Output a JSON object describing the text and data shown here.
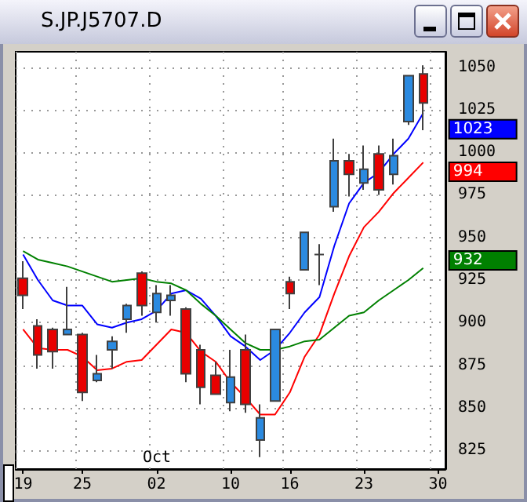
{
  "chart_data": {
    "type": "candlestick",
    "title": "S.JP.J5707.D",
    "categories": [
      "19",
      null,
      null,
      null,
      "25",
      null,
      null,
      null,
      null,
      "02",
      null,
      null,
      null,
      null,
      "10",
      null,
      null,
      null,
      "16",
      null,
      null,
      null,
      null,
      "23",
      null,
      null,
      null,
      null,
      "30"
    ],
    "ohlc": [
      [
        926,
        936,
        908,
        916
      ],
      [
        898,
        902,
        873,
        881
      ],
      [
        896,
        897,
        873,
        883
      ],
      [
        893,
        921,
        893,
        896
      ],
      [
        893,
        894,
        854,
        859
      ],
      [
        866,
        881,
        865,
        870
      ],
      [
        884,
        892,
        873,
        889
      ],
      [
        902,
        911,
        894,
        910
      ],
      [
        929,
        930,
        904,
        910
      ],
      [
        906,
        922,
        900,
        917
      ],
      [
        913,
        922,
        904,
        916
      ],
      [
        908,
        909,
        865,
        870
      ],
      [
        884,
        887,
        852,
        862
      ],
      [
        869,
        877,
        858,
        858
      ],
      [
        853,
        884,
        848,
        868
      ],
      [
        884,
        893,
        847,
        852
      ],
      [
        831,
        852,
        821,
        844
      ],
      [
        854,
        896,
        854,
        896
      ],
      [
        924,
        927,
        908,
        917
      ],
      [
        931,
        953,
        931,
        953
      ],
      [
        940,
        946,
        922,
        940
      ],
      [
        968,
        1008,
        965,
        995
      ],
      [
        995,
        999,
        974,
        987
      ],
      [
        982,
        1004,
        978,
        990
      ],
      [
        999,
        1004,
        975,
        978
      ],
      [
        987,
        1008,
        981,
        998
      ],
      [
        1018,
        1045,
        1016,
        1045
      ],
      [
        1046,
        1051,
        1013,
        1029
      ],
      null
    ],
    "colors": [
      "#e80000",
      "#e80000",
      "#e80000",
      "#2b8ae0",
      "#e80000",
      "#2b8ae0",
      "#2b8ae0",
      "#2b8ae0",
      "#e80000",
      "#2b8ae0",
      "#2b8ae0",
      "#e80000",
      "#e80000",
      "#e80000",
      "#2b8ae0",
      "#e80000",
      "#2b8ae0",
      "#2b8ae0",
      "#e80000",
      "#2b8ae0",
      "#404040",
      "#2b8ae0",
      "#e80000",
      "#2b8ae0",
      "#e80000",
      "#2b8ae0",
      "#2b8ae0",
      "#e80000",
      null
    ],
    "series": [
      {
        "type": "line",
        "color": "#0000ff",
        "values": [
          940,
          925,
          913,
          910,
          910,
          899,
          897,
          900,
          902,
          907,
          917,
          919,
          914,
          904,
          892,
          886,
          878,
          884,
          894,
          906,
          915,
          945,
          970,
          982,
          988,
          999,
          1008,
          1023,
          null
        ],
        "value_labels": [
          null,
          null,
          null,
          null,
          null,
          null,
          null,
          null,
          null,
          null,
          null,
          null,
          null,
          null,
          null,
          null,
          null,
          null,
          null,
          null,
          null,
          null,
          null,
          null,
          null,
          null,
          null,
          "1023",
          null
        ]
      },
      {
        "type": "line",
        "color": "#ff0000",
        "values": [
          896,
          885,
          884,
          884,
          880,
          872,
          873,
          877,
          878,
          887,
          896,
          894,
          883,
          877,
          865,
          856,
          846,
          846,
          859,
          880,
          893,
          917,
          939,
          956,
          965,
          976,
          985,
          994,
          null
        ],
        "value_labels": [
          null,
          null,
          null,
          null,
          null,
          null,
          null,
          null,
          null,
          null,
          null,
          null,
          null,
          null,
          null,
          null,
          null,
          null,
          null,
          null,
          null,
          null,
          null,
          null,
          null,
          null,
          null,
          "994",
          null
        ]
      },
      {
        "type": "line",
        "color": "#008000",
        "values": [
          942,
          937,
          935,
          933,
          930,
          927,
          924,
          925,
          926,
          924,
          923,
          919,
          911,
          904,
          896,
          888,
          884,
          884,
          886,
          889,
          890,
          897,
          904,
          906,
          913,
          919,
          925,
          932,
          null
        ],
        "value_labels": [
          null,
          null,
          null,
          null,
          null,
          null,
          null,
          null,
          null,
          null,
          null,
          null,
          null,
          null,
          null,
          null,
          null,
          null,
          null,
          null,
          null,
          null,
          null,
          null,
          null,
          null,
          null,
          "932",
          null
        ]
      }
    ],
    "ylim": [
      814,
      1059
    ],
    "yticks": [
      825,
      850,
      875,
      900,
      925,
      950,
      975,
      1000,
      1025,
      1050
    ],
    "grid": true,
    "annotations": [
      "Oct"
    ]
  }
}
